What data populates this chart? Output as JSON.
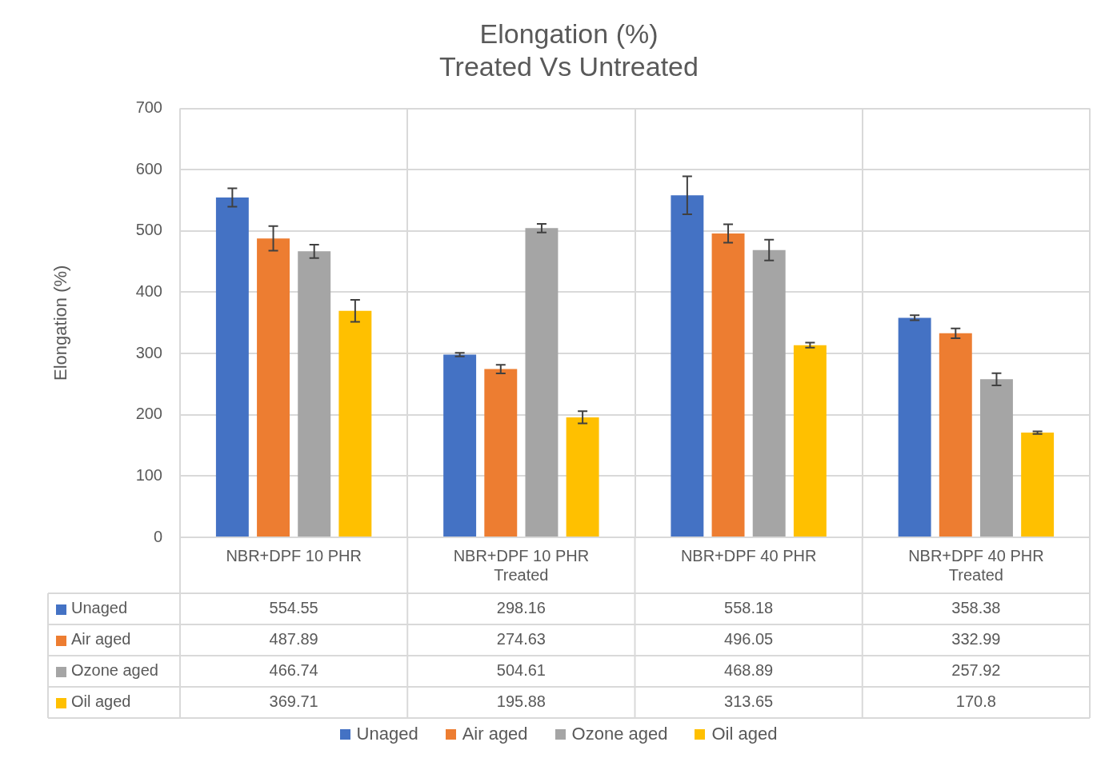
{
  "chart_data": {
    "type": "bar",
    "title": [
      "Elongation (%)",
      "Treated Vs Untreated"
    ],
    "ylabel": "Elongation (%)",
    "categories": [
      "NBR+DPF 10 PHR",
      "NBR+DPF 10 PHR Treated",
      "NBR+DPF 40 PHR",
      "NBR+DPF 40 PHR Treated"
    ],
    "series": [
      {
        "name": "Unaged",
        "color": "#4472c4",
        "values": [
          554.55,
          298.16,
          558.18,
          358.38
        ],
        "errors": [
          15,
          3,
          31,
          4
        ]
      },
      {
        "name": "Air aged",
        "color": "#ed7d31",
        "values": [
          487.89,
          274.63,
          496.05,
          332.99
        ],
        "errors": [
          20,
          7,
          15,
          8
        ]
      },
      {
        "name": "Ozone aged",
        "color": "#a5a5a5",
        "values": [
          466.74,
          504.61,
          468.89,
          257.92
        ],
        "errors": [
          11,
          7,
          17,
          10
        ]
      },
      {
        "name": "Oil aged",
        "color": "#ffc000",
        "values": [
          369.71,
          195.88,
          313.65,
          170.8
        ],
        "errors": [
          18,
          10,
          4,
          2
        ]
      }
    ],
    "ylim": [
      0,
      700
    ],
    "yticks": [
      0,
      100,
      200,
      300,
      400,
      500,
      600,
      700
    ],
    "grid": true,
    "legend": "bottom",
    "data_labels": true
  }
}
